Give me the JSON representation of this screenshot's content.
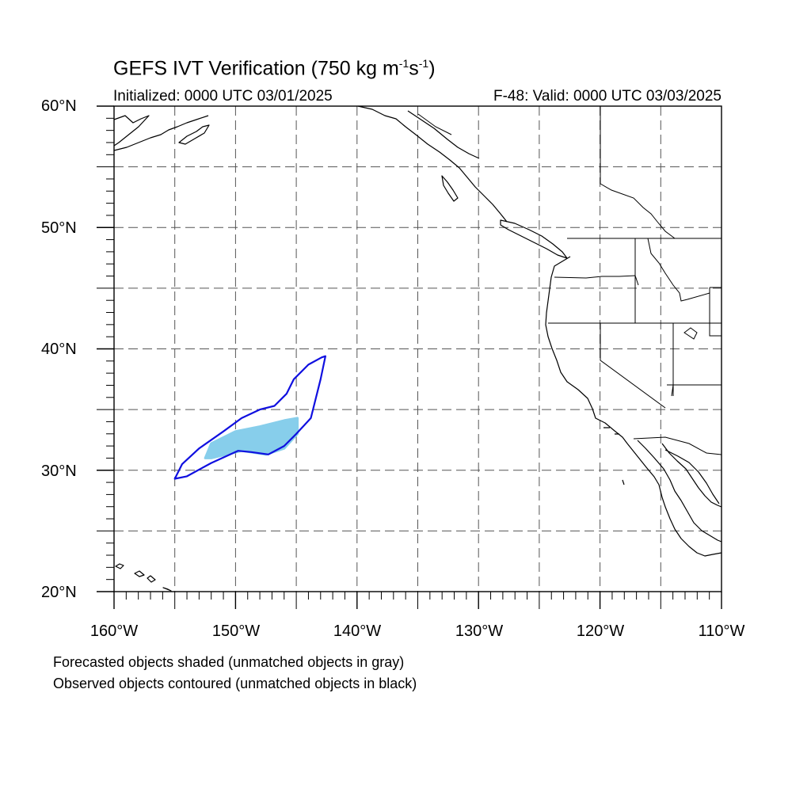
{
  "title": {
    "main": "GEFS IVT Verification (750 kg m",
    "exp1": "-1",
    "mid": "s",
    "exp2": "-1",
    "end": ")"
  },
  "initialized": "Initialized: 0000 UTC 03/01/2025",
  "valid": "F-48: Valid: 0000 UTC 03/03/2025",
  "axes": {
    "lat_labels": [
      "60°N",
      "50°N",
      "40°N",
      "30°N",
      "20°N"
    ],
    "lon_labels": [
      "160°W",
      "150°W",
      "140°W",
      "130°W",
      "120°W",
      "110°W"
    ],
    "lat_range": [
      20,
      60
    ],
    "lon_range": [
      -160,
      -110
    ],
    "grid_interval_deg": 5,
    "grid_style": "dashed"
  },
  "notes": [
    "Forecasted objects shaded (unmatched objects in gray)",
    "Observed objects contoured (unmatched objects in black)"
  ],
  "colors": {
    "forecast_fill": "#87ceeb",
    "observed_contour": "#1010e0",
    "coastline": "#000000",
    "grid": "#555555"
  },
  "objects": {
    "forecast_shaded": {
      "matched": true,
      "polygon_lonlat": [
        [
          -152.5,
          31.0
        ],
        [
          -152.0,
          32.2
        ],
        [
          -150.0,
          33.2
        ],
        [
          -148.0,
          33.6
        ],
        [
          -146.0,
          34.1
        ],
        [
          -144.9,
          34.3
        ],
        [
          -144.9,
          33.0
        ],
        [
          -146.0,
          31.8
        ],
        [
          -147.5,
          31.3
        ],
        [
          -149.5,
          31.6
        ],
        [
          -152.0,
          31.0
        ]
      ]
    },
    "observed_contour": {
      "matched": true,
      "polygon_lonlat": [
        [
          -155.0,
          29.3
        ],
        [
          -154.4,
          30.5
        ],
        [
          -153.0,
          31.8
        ],
        [
          -151.0,
          33.2
        ],
        [
          -149.5,
          34.3
        ],
        [
          -148.0,
          35.0
        ],
        [
          -146.8,
          35.3
        ],
        [
          -145.8,
          36.3
        ],
        [
          -145.2,
          37.5
        ],
        [
          -144.0,
          38.7
        ],
        [
          -142.9,
          39.3
        ],
        [
          -142.6,
          39.4
        ],
        [
          -143.0,
          37.5
        ],
        [
          -143.8,
          34.3
        ],
        [
          -145.0,
          33.0
        ],
        [
          -146.0,
          32.0
        ],
        [
          -147.3,
          31.3
        ],
        [
          -148.7,
          31.5
        ],
        [
          -149.8,
          31.6
        ],
        [
          -152.0,
          30.6
        ],
        [
          -154.0,
          29.5
        ],
        [
          -155.0,
          29.3
        ]
      ]
    }
  }
}
